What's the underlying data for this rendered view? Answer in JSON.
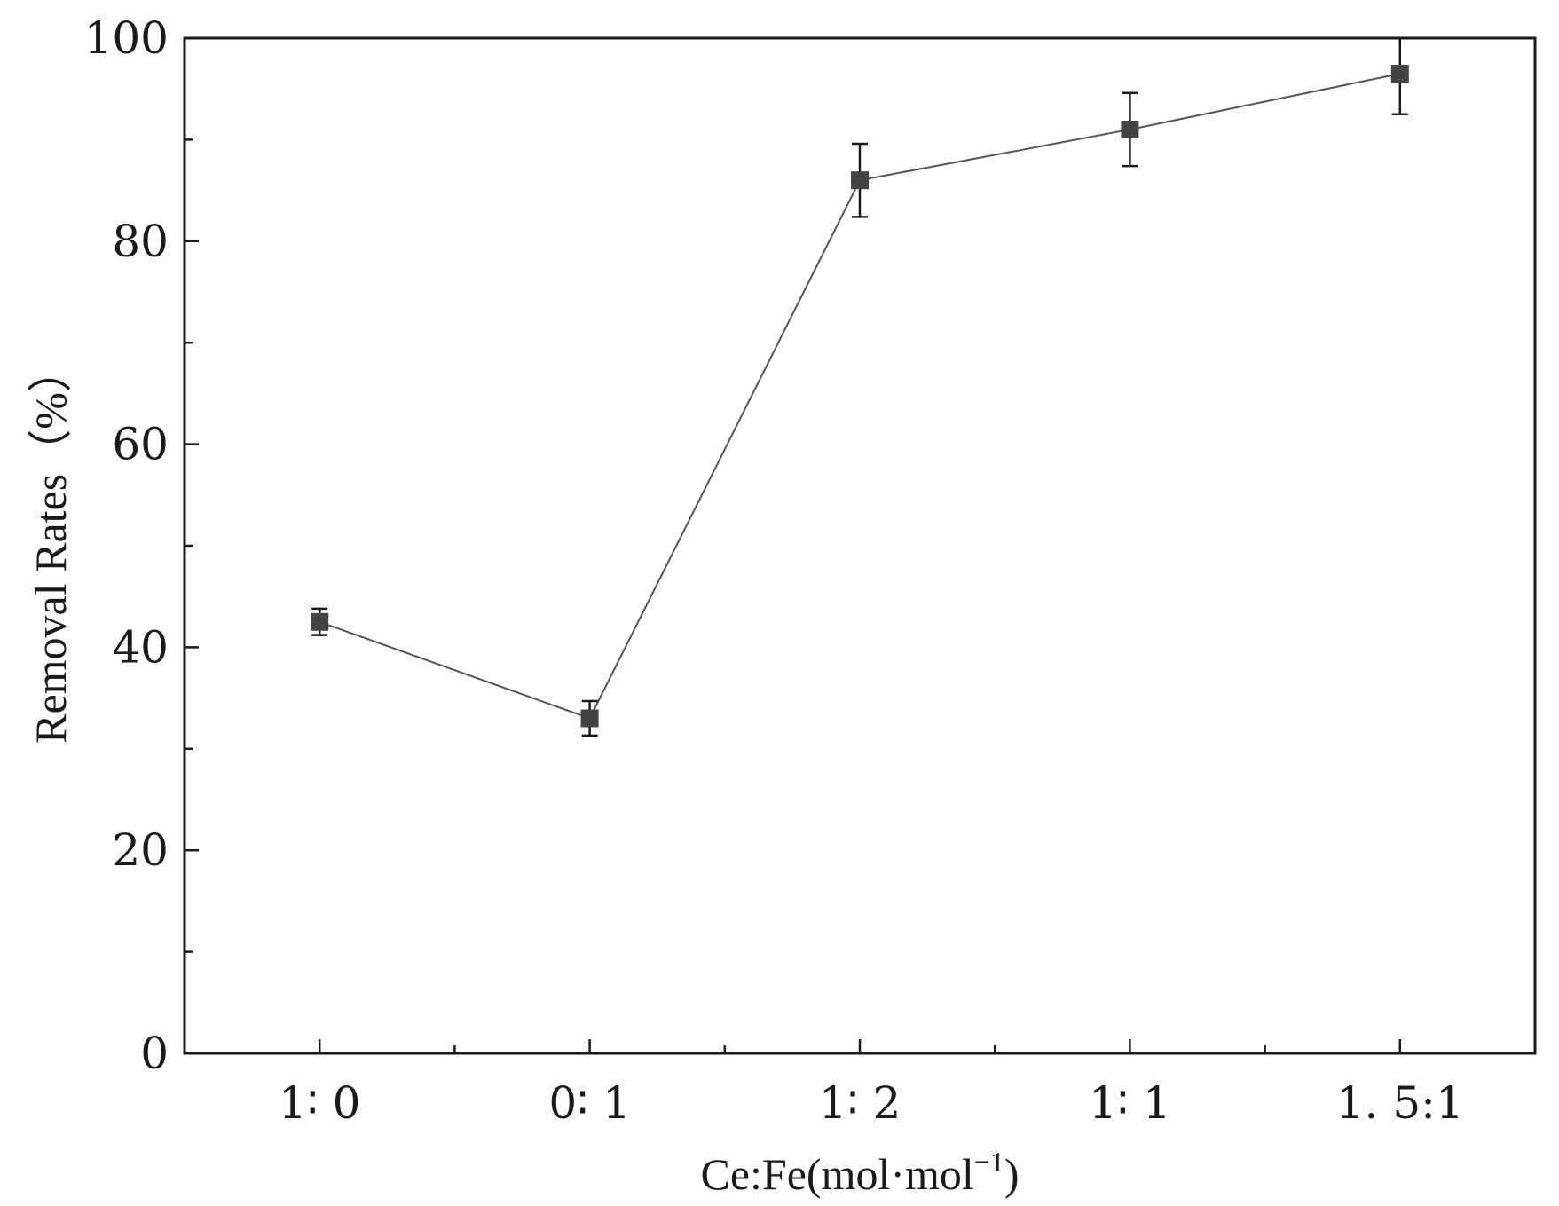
{
  "chart_data": {
    "type": "line",
    "title": "",
    "xlabel": "Ce:Fe(mol·mol",
    "xlabel_superscript": "−1",
    "xlabel_suffix": ")",
    "ylabel": "Removal Rates（%）",
    "categories": [
      "1∶ 0",
      "0∶ 1",
      "1∶ 2",
      "1∶ 1",
      "1. 5:1"
    ],
    "series": [
      {
        "values": [
          42.5,
          33,
          86,
          91,
          96.5
        ],
        "error": [
          1.3,
          1.7,
          3.6,
          3.6,
          4.0
        ]
      }
    ],
    "ylim": [
      0,
      100
    ],
    "yticks": [
      0,
      20,
      40,
      60,
      80,
      100
    ],
    "grid": false,
    "marker": "square",
    "line_color": "#555555",
    "marker_color": "#444444",
    "axis_color": "#1a1a1a"
  }
}
